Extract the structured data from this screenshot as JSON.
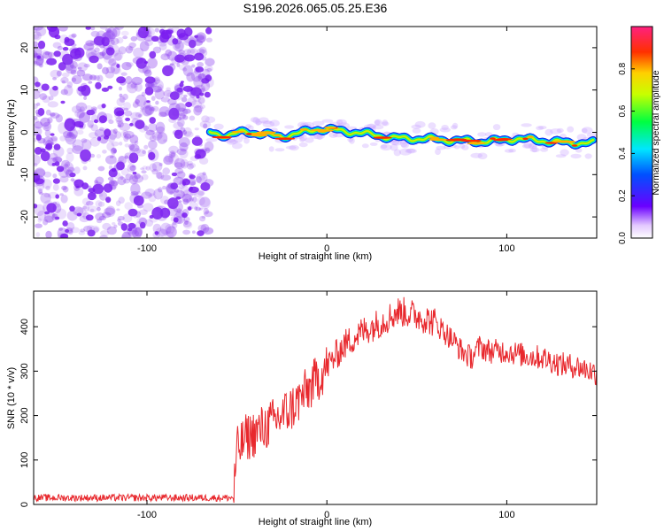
{
  "chart_data": [
    {
      "type": "heatmap",
      "title": "S196.2026.065.05.25.E36",
      "xlabel": "Height of straight line (km)",
      "ylabel": "Frequency (Hz)",
      "xlim": [
        -163,
        150
      ],
      "ylim": [
        -25,
        25
      ],
      "x_ticks": [
        -100,
        0,
        100
      ],
      "y_ticks": [
        -20,
        -10,
        0,
        10,
        20
      ],
      "noise_region_x": [
        -163,
        -65
      ],
      "signal_ridge": {
        "x": [
          -65,
          -55,
          -45,
          -35,
          -25,
          -15,
          -5,
          5,
          15,
          25,
          35,
          45,
          55,
          65,
          75,
          85,
          95,
          105,
          115,
          125,
          135,
          148
        ],
        "freq": [
          0.0,
          -0.8,
          0.2,
          -0.5,
          -1.0,
          -0.2,
          0.8,
          0.5,
          0.0,
          -0.5,
          -1.2,
          -1.5,
          -1.5,
          -1.8,
          -2.0,
          -2.2,
          -2.0,
          -1.5,
          -1.8,
          -2.2,
          -2.5,
          -2.5
        ]
      },
      "colorbar": {
        "label": "Normalized spectral amplitude",
        "ticks": [
          "0.0",
          "0.2",
          "0.4",
          "0.6",
          "0.8"
        ],
        "range": [
          0,
          1
        ]
      }
    },
    {
      "type": "line",
      "xlabel": "Height of straight line (km)",
      "ylabel": "SNR (10 * v/v)",
      "xlim": [
        -163,
        150
      ],
      "ylim": [
        0,
        480
      ],
      "x_ticks": [
        -100,
        0,
        100
      ],
      "y_ticks": [
        0,
        100,
        200,
        300,
        400
      ],
      "series": [
        {
          "name": "SNR",
          "color": "#e8282d",
          "x": [
            -163,
            -120,
            -80,
            -52,
            -50,
            -45,
            -40,
            -30,
            -20,
            -10,
            0,
            10,
            20,
            30,
            40,
            50,
            60,
            70,
            75,
            80,
            85,
            90,
            100,
            110,
            120,
            130,
            140,
            150
          ],
          "y": [
            15,
            15,
            15,
            15,
            120,
            150,
            160,
            185,
            215,
            260,
            310,
            360,
            390,
            410,
            435,
            425,
            410,
            370,
            345,
            330,
            355,
            345,
            345,
            335,
            330,
            315,
            310,
            295
          ]
        }
      ]
    }
  ],
  "colors": {
    "line": "#e8282d",
    "noise": "#8a3cf0"
  }
}
